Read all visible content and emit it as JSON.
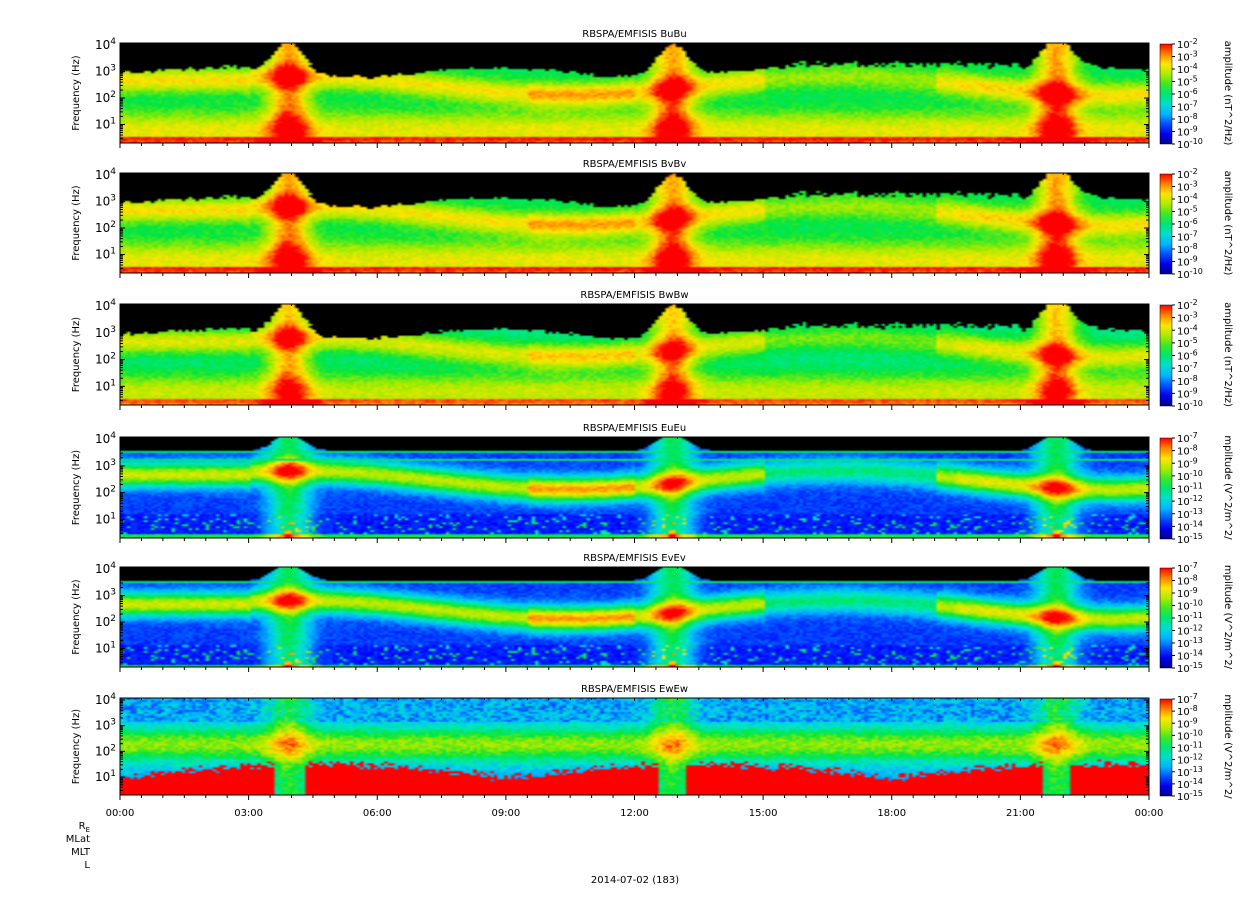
{
  "chart_data": {
    "type": "heatmap",
    "x_tick_labels": [
      "00:00",
      "03:00",
      "06:00",
      "09:00",
      "12:00",
      "15:00",
      "18:00",
      "21:00",
      "00:00"
    ],
    "x_range_hours": [
      0,
      24
    ],
    "y_scale": "log",
    "y_range_hz": [
      2,
      12000
    ],
    "date_label": "2014-07-02 (183)",
    "ephemeris_labels": [
      "R",
      "MLat",
      "MLT",
      "L"
    ],
    "ephemeris_subscript": "E",
    "panels": [
      {
        "title": "RBSPA/EMFISIS  BuBu",
        "ylabel": "Frequency (Hz)",
        "colorbar_label": "amplitude (nT^2/Hz)",
        "colorbar_exponents": [
          -2,
          -3,
          -4,
          -5,
          -6,
          -7,
          -8,
          -9,
          -10
        ],
        "colorbar_range_log": [
          -10,
          -2
        ],
        "kind": "B"
      },
      {
        "title": "RBSPA/EMFISIS  BvBv",
        "ylabel": "Frequency (Hz)",
        "colorbar_label": "amplitude (nT^2/Hz)",
        "colorbar_exponents": [
          -2,
          -3,
          -4,
          -5,
          -6,
          -7,
          -8,
          -9,
          -10
        ],
        "colorbar_range_log": [
          -10,
          -2
        ],
        "kind": "B"
      },
      {
        "title": "RBSPA/EMFISIS  BwBw",
        "ylabel": "Frequency (Hz)",
        "colorbar_label": "amplitude (nT^2/Hz)",
        "colorbar_exponents": [
          -2,
          -3,
          -4,
          -5,
          -6,
          -7,
          -8,
          -9,
          -10
        ],
        "colorbar_range_log": [
          -10,
          -2
        ],
        "kind": "Bw"
      },
      {
        "title": "RBSPA/EMFISIS  EuEu",
        "ylabel": "Frequency (Hz)",
        "colorbar_label": "mplitude (V^2/m^2/",
        "colorbar_exponents": [
          -7,
          -8,
          -9,
          -10,
          -11,
          -12,
          -13,
          -14,
          -15
        ],
        "colorbar_range_log": [
          -15,
          -7
        ],
        "kind": "E"
      },
      {
        "title": "RBSPA/EMFISIS  EvEv",
        "ylabel": "Frequency (Hz)",
        "colorbar_label": "mplitude (V^2/m^2/",
        "colorbar_exponents": [
          -7,
          -8,
          -9,
          -10,
          -11,
          -12,
          -13,
          -14,
          -15
        ],
        "colorbar_range_log": [
          -15,
          -7
        ],
        "kind": "E"
      },
      {
        "title": "RBSPA/EMFISIS  EwEw",
        "ylabel": "Frequency (Hz)",
        "colorbar_label": "mplitude (V^2/m^2/",
        "colorbar_exponents": [
          -7,
          -8,
          -9,
          -10,
          -11,
          -12,
          -13,
          -14,
          -15
        ],
        "colorbar_range_log": [
          -15,
          -7
        ],
        "kind": "Ew"
      }
    ],
    "y_tick_exponents": [
      1,
      2,
      3,
      4
    ],
    "y_tick_base": "10",
    "colorbar_base": "10",
    "features": {
      "perigee_passes_hours": [
        3.9,
        12.85,
        21.8
      ],
      "chorus_band_hz": [
        100,
        1000
      ],
      "hiss_band_hz": [
        50,
        700
      ]
    },
    "colors": {
      "background": "#000000",
      "low": "#0000a0",
      "mid": "#00e060",
      "high": "#ff0000"
    }
  }
}
